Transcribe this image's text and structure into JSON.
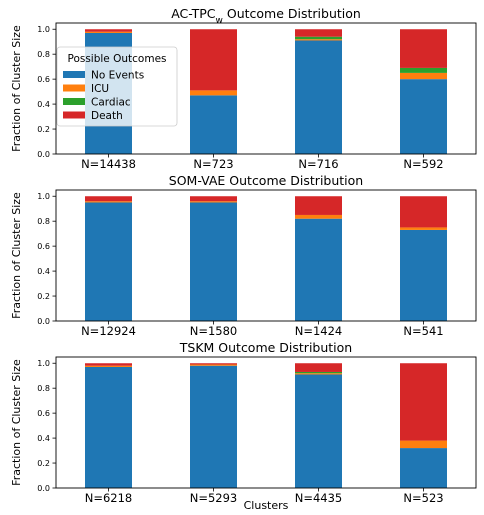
{
  "colors": {
    "No Events": "#1f77b4",
    "ICU": "#ff7f0e",
    "Cardiac": "#2ca02c",
    "Death": "#d62728"
  },
  "legend": {
    "title": "Possible Outcomes",
    "entries": [
      "No Events",
      "ICU",
      "Cardiac",
      "Death"
    ],
    "placement": "upper-left of first chart"
  },
  "xlabel": "Clusters",
  "chart_data": [
    {
      "type": "bar",
      "stacked": true,
      "title": "AC-TPC",
      "title_subscript": "w",
      "title_suffix": " Outcome Distribution",
      "ylabel": "Fraction of Cluster Size",
      "ylim": [
        0,
        1.05
      ],
      "yticks": [
        "0.0",
        "0.2",
        "0.4",
        "0.6",
        "0.8",
        "1.0"
      ],
      "categories": [
        "N=14438",
        "N=723",
        "N=716",
        "N=592"
      ],
      "series": [
        {
          "name": "No Events",
          "values": [
            0.97,
            0.47,
            0.91,
            0.6
          ]
        },
        {
          "name": "ICU",
          "values": [
            0.01,
            0.04,
            0.01,
            0.05
          ]
        },
        {
          "name": "Cardiac",
          "values": [
            0.0,
            0.0,
            0.02,
            0.04
          ]
        },
        {
          "name": "Death",
          "values": [
            0.02,
            0.49,
            0.06,
            0.31
          ]
        }
      ]
    },
    {
      "type": "bar",
      "stacked": true,
      "title": "SOM-VAE Outcome Distribution",
      "ylabel": "Fraction of Cluster Size",
      "ylim": [
        0,
        1.05
      ],
      "yticks": [
        "0.0",
        "0.2",
        "0.4",
        "0.6",
        "0.8",
        "1.0"
      ],
      "categories": [
        "N=12924",
        "N=1580",
        "N=1424",
        "N=541"
      ],
      "series": [
        {
          "name": "No Events",
          "values": [
            0.95,
            0.95,
            0.82,
            0.73
          ]
        },
        {
          "name": "ICU",
          "values": [
            0.01,
            0.01,
            0.03,
            0.02
          ]
        },
        {
          "name": "Cardiac",
          "values": [
            0.0,
            0.0,
            0.0,
            0.0
          ]
        },
        {
          "name": "Death",
          "values": [
            0.04,
            0.04,
            0.15,
            0.25
          ]
        }
      ]
    },
    {
      "type": "bar",
      "stacked": true,
      "title": "TSKM Outcome Distribution",
      "ylabel": "Fraction of Cluster Size",
      "ylim": [
        0,
        1.05
      ],
      "yticks": [
        "0.0",
        "0.2",
        "0.4",
        "0.6",
        "0.8",
        "1.0"
      ],
      "categories": [
        "N=6218",
        "N=5293",
        "N=4435",
        "N=523"
      ],
      "series": [
        {
          "name": "No Events",
          "values": [
            0.97,
            0.98,
            0.91,
            0.32
          ]
        },
        {
          "name": "ICU",
          "values": [
            0.01,
            0.01,
            0.01,
            0.06
          ]
        },
        {
          "name": "Cardiac",
          "values": [
            0.0,
            0.0,
            0.01,
            0.0
          ]
        },
        {
          "name": "Death",
          "values": [
            0.02,
            0.01,
            0.07,
            0.62
          ]
        }
      ]
    }
  ]
}
